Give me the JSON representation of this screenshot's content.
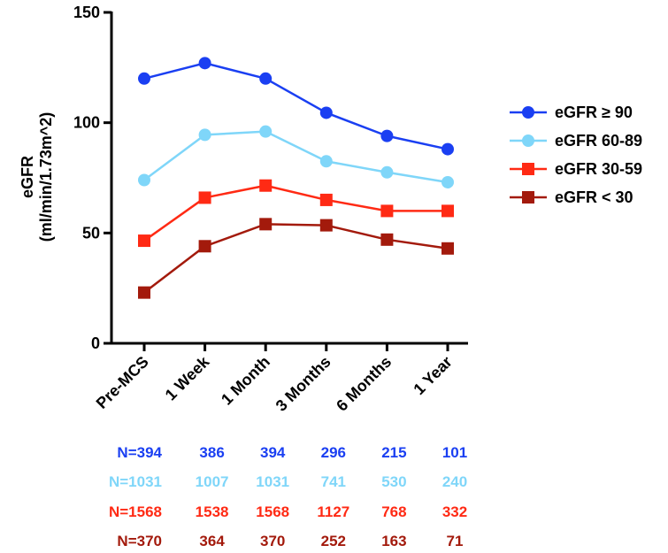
{
  "chart_data": {
    "type": "line",
    "title": "",
    "xlabel": "",
    "ylabel": "eGFR",
    "ylabel_unit": "(ml/min/1.73m^2)",
    "categories": [
      "Pre-MCS",
      "1 Week",
      "1 Month",
      "3 Months",
      "6 Months",
      "1 Year"
    ],
    "ylim": [
      0,
      150
    ],
    "yticks": [
      0,
      50,
      100,
      150
    ],
    "grid": false,
    "legend_position": "right",
    "series": [
      {
        "name": "eGFR ≥ 90",
        "color": "#1a3ff2",
        "marker": "circle",
        "values": [
          120,
          127,
          120,
          104.5,
          94,
          88
        ],
        "n_labels": [
          "N=394",
          "386",
          "394",
          "296",
          "215",
          "101"
        ]
      },
      {
        "name": "eGFR 60-89",
        "color": "#7fd6f9",
        "marker": "circle",
        "values": [
          74,
          94.5,
          96,
          82.5,
          77.5,
          73
        ],
        "n_labels": [
          "N=1031",
          "1007",
          "1031",
          "741",
          "530",
          "240"
        ]
      },
      {
        "name": "eGFR 30-59",
        "color": "#ff2a14",
        "marker": "square",
        "values": [
          46.5,
          66,
          71.5,
          65,
          60,
          60
        ],
        "n_labels": [
          "N=1568",
          "1538",
          "1568",
          "1127",
          "768",
          "332"
        ]
      },
      {
        "name": "eGFR < 30",
        "color": "#a31a0c",
        "marker": "square",
        "values": [
          23,
          44,
          54,
          53.5,
          47,
          43
        ],
        "n_labels": [
          "N=370",
          "364",
          "370",
          "252",
          "163",
          "71"
        ]
      }
    ]
  }
}
